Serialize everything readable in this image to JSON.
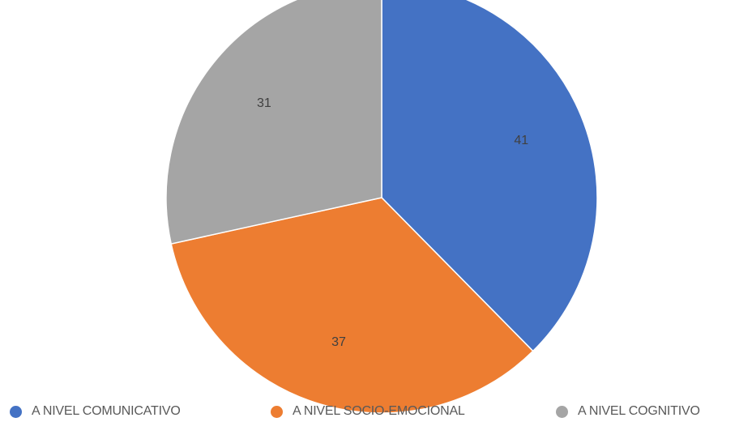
{
  "chart_data": {
    "type": "pie",
    "title": "",
    "slices": [
      {
        "label": "A NIVEL COMUNICATIVO",
        "value": 41,
        "color": "#4472C4"
      },
      {
        "label": "A NIVEL SOCIO-EMOCIONAL",
        "value": 37,
        "color": "#ED7D31"
      },
      {
        "label": "A NIVEL COGNITIVO",
        "value": 31,
        "color": "#A5A5A5"
      }
    ],
    "start_angle": "12 o'clock",
    "direction": "clockwise",
    "data_labels": true,
    "legend_position": "bottom"
  }
}
